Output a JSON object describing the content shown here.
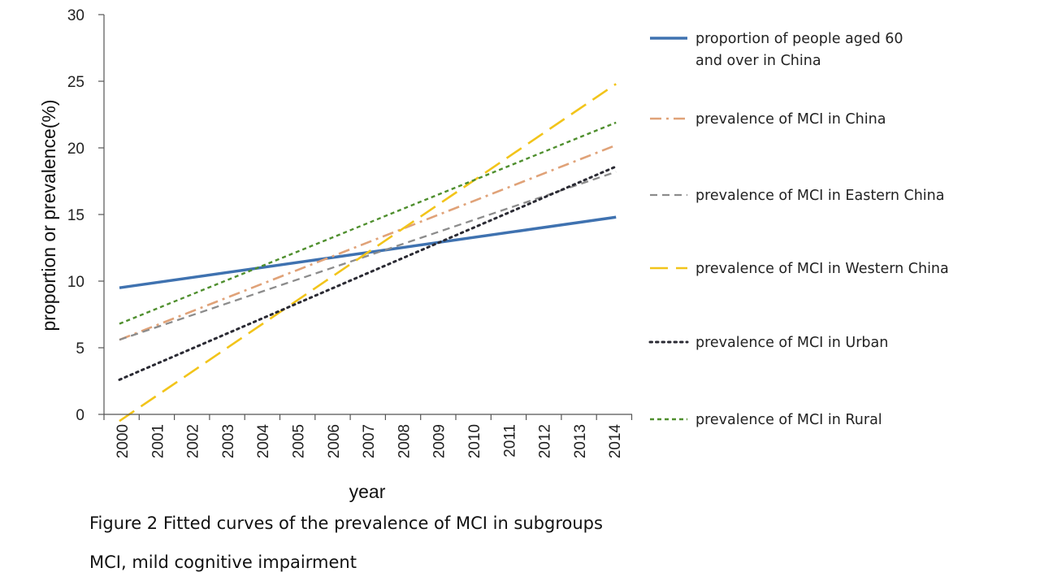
{
  "chart_data": {
    "type": "line",
    "title": "",
    "xlabel": "year",
    "ylabel": "proportion or prevalence(%)",
    "x": [
      "2000",
      "2001",
      "2002",
      "2003",
      "2004",
      "2005",
      "2006",
      "2007",
      "2008",
      "2009",
      "2010",
      "2011",
      "2012",
      "2013",
      "2014"
    ],
    "ylim": [
      0,
      30
    ],
    "yticks": [
      0,
      5,
      10,
      15,
      20,
      25,
      30
    ],
    "grid": false,
    "legend_position": "right",
    "series": [
      {
        "name": "proportion of people aged 60 and over in China",
        "legend_lines": [
          "proportion of people aged 60",
          "and over in China"
        ],
        "start": 9.5,
        "end": 14.8,
        "color": "#3f72b0",
        "style": "solid"
      },
      {
        "name": "prevalence of MCI in China",
        "legend_lines": [
          "prevalence of MCI in China"
        ],
        "start": 5.6,
        "end": 20.2,
        "color": "#e0a278",
        "style": "dashdot"
      },
      {
        "name": "prevalence of MCI in Eastern China",
        "legend_lines": [
          "prevalence of MCI in Eastern China"
        ],
        "start": 5.6,
        "end": 18.2,
        "color": "#8c8c8c",
        "style": "dash"
      },
      {
        "name": "prevalence of MCI in Western China",
        "legend_lines": [
          "prevalence of MCI in Western China"
        ],
        "start": -0.5,
        "end": 24.8,
        "color": "#f2c41a",
        "style": "longdash"
      },
      {
        "name": "prevalence of MCI in Urban",
        "legend_lines": [
          "prevalence of MCI in Urban"
        ],
        "start": 2.6,
        "end": 18.6,
        "color": "#2a2a33",
        "style": "dot"
      },
      {
        "name": "prevalence of MCI in Rural",
        "legend_lines": [
          "prevalence of MCI in Rural"
        ],
        "start": 6.8,
        "end": 21.9,
        "color": "#4f8f2e",
        "style": "shortdash"
      }
    ]
  },
  "caption": {
    "line1": "Figure 2 Fitted curves of the prevalence of MCI in subgroups",
    "line2": "MCI, mild cognitive impairment"
  }
}
